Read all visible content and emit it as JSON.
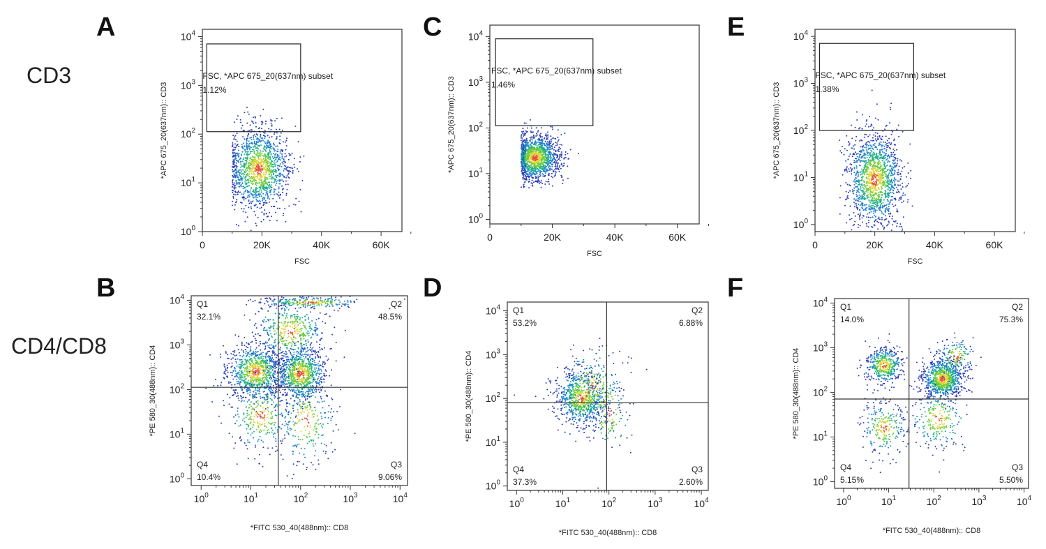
{
  "panel_letters": [
    "A",
    "B",
    "C",
    "D",
    "E",
    "F"
  ],
  "row_labels": {
    "top": "CD3",
    "bottom": "CD4/CD8"
  },
  "chart_data": [
    {
      "panel": "A",
      "type": "scatter",
      "xlabel": "FSC",
      "ylabel": "*APC 675_20(637nm):: CD3",
      "x_ticks": [
        "0",
        "20K",
        "40K",
        "60K"
      ],
      "x_range": [
        0,
        67000
      ],
      "x_scale": "linear",
      "y_ticks": [
        "10^0",
        "10^1",
        "10^2",
        "10^3",
        "10^4"
      ],
      "y_range": [
        0,
        4.15
      ],
      "y_scale": "log",
      "gate": {
        "name": "FSC, *APC 675_20(637nm) subset",
        "percent": "1.12%",
        "x_range": [
          1500,
          33000
        ],
        "y_range_log": [
          2.05,
          3.85
        ]
      },
      "populations": [
        {
          "x_mean": 19000,
          "x_sd": 5200,
          "y_log_mean": 1.28,
          "y_log_sd": 0.42,
          "x_min": 10000
        }
      ]
    },
    {
      "panel": "B",
      "type": "scatter",
      "xlabel": "*FITC 530_40(488nm):: CD8",
      "ylabel": "*PE 580_30(488nm):: CD4",
      "x_ticks": [
        "10^0",
        "10^1",
        "10^2",
        "10^3",
        "10^4"
      ],
      "x_range": [
        -0.2,
        4.15
      ],
      "x_scale": "log",
      "y_ticks": [
        "10^0",
        "10^1",
        "10^2",
        "10^3",
        "10^4"
      ],
      "y_range": [
        -0.15,
        4.1
      ],
      "y_scale": "log",
      "quadrant_divider": {
        "x_log": 1.55,
        "y_log": 2.05
      },
      "quadrants": [
        {
          "name": "Q1",
          "value": "32.1%"
        },
        {
          "name": "Q2",
          "value": "48.5%"
        },
        {
          "name": "Q3",
          "value": "9.06%"
        },
        {
          "name": "Q4",
          "value": "10.4%"
        }
      ]
    },
    {
      "panel": "C",
      "type": "scatter",
      "xlabel": "FSC",
      "ylabel": "*APC 675_20(637nm):: CD3",
      "x_ticks": [
        "0",
        "20K",
        "40K",
        "60K"
      ],
      "x_range": [
        0,
        67000
      ],
      "x_scale": "linear",
      "y_ticks": [
        "10^0",
        "10^1",
        "10^2",
        "10^3",
        "10^4"
      ],
      "y_range": [
        -0.1,
        4.25
      ],
      "y_scale": "log",
      "gate": {
        "name": "FSC, *APC 675_20(637nm) subset",
        "percent": "1.46%",
        "x_range": [
          1800,
          33000
        ],
        "y_range_log": [
          2.05,
          3.95
        ]
      },
      "populations": [
        {
          "x_mean": 14500,
          "x_sd": 3800,
          "y_log_mean": 1.35,
          "y_log_sd": 0.25,
          "x_min": 10000
        }
      ]
    },
    {
      "panel": "D",
      "type": "scatter",
      "xlabel": "*FITC 530_40(488nm):: CD8",
      "ylabel": "*PE 580_30(488nm):: CD4",
      "x_ticks": [
        "10^0",
        "10^1",
        "10^2",
        "10^3",
        "10^4"
      ],
      "x_range": [
        -0.2,
        4.15
      ],
      "x_scale": "log",
      "y_ticks": [
        "10^0",
        "10^1",
        "10^2",
        "10^3",
        "10^4"
      ],
      "y_range": [
        -0.1,
        4.2
      ],
      "y_scale": "log",
      "quadrant_divider": {
        "x_log": 1.95,
        "y_log": 1.9
      },
      "quadrants": [
        {
          "name": "Q1",
          "value": "53.2%"
        },
        {
          "name": "Q2",
          "value": "6.88%"
        },
        {
          "name": "Q3",
          "value": "2.60%"
        },
        {
          "name": "Q4",
          "value": "37.3%"
        }
      ]
    },
    {
      "panel": "E",
      "type": "scatter",
      "xlabel": "FSC",
      "ylabel": "*APC 675_20(637nm):: CD3",
      "x_ticks": [
        "0",
        "20K",
        "40K",
        "60K"
      ],
      "x_range": [
        0,
        67000
      ],
      "x_scale": "linear",
      "y_ticks": [
        "10^0",
        "10^1",
        "10^2",
        "10^3",
        "10^4"
      ],
      "y_range": [
        -0.15,
        4.15
      ],
      "y_scale": "log",
      "gate": {
        "name": "FSC, *APC 675_20(637nm) subset",
        "percent": "1.38%",
        "x_range": [
          1500,
          33000
        ],
        "y_range_log": [
          2.0,
          3.85
        ]
      },
      "populations": [
        {
          "x_mean": 20000,
          "x_sd": 4500,
          "y_log_mean": 0.95,
          "y_log_sd": 0.5,
          "x_min": 8000
        }
      ]
    },
    {
      "panel": "F",
      "type": "scatter",
      "xlabel": "*FITC 530_40(488nm):: CD8",
      "ylabel": "*PE 580_30(488nm):: CD4",
      "x_ticks": [
        "10^0",
        "10^1",
        "10^2",
        "10^3",
        "10^4"
      ],
      "x_range": [
        -0.2,
        4.1
      ],
      "x_scale": "log",
      "y_ticks": [
        "10^0",
        "10^1",
        "10^2",
        "10^3",
        "10^4"
      ],
      "y_range": [
        -0.15,
        4.1
      ],
      "y_scale": "log",
      "quadrant_divider": {
        "x_log": 1.45,
        "y_log": 1.85
      },
      "quadrants": [
        {
          "name": "Q1",
          "value": "14.0%"
        },
        {
          "name": "Q2",
          "value": "75.3%"
        },
        {
          "name": "Q3",
          "value": "5.50%"
        },
        {
          "name": "Q4",
          "value": "5.15%"
        }
      ]
    }
  ]
}
